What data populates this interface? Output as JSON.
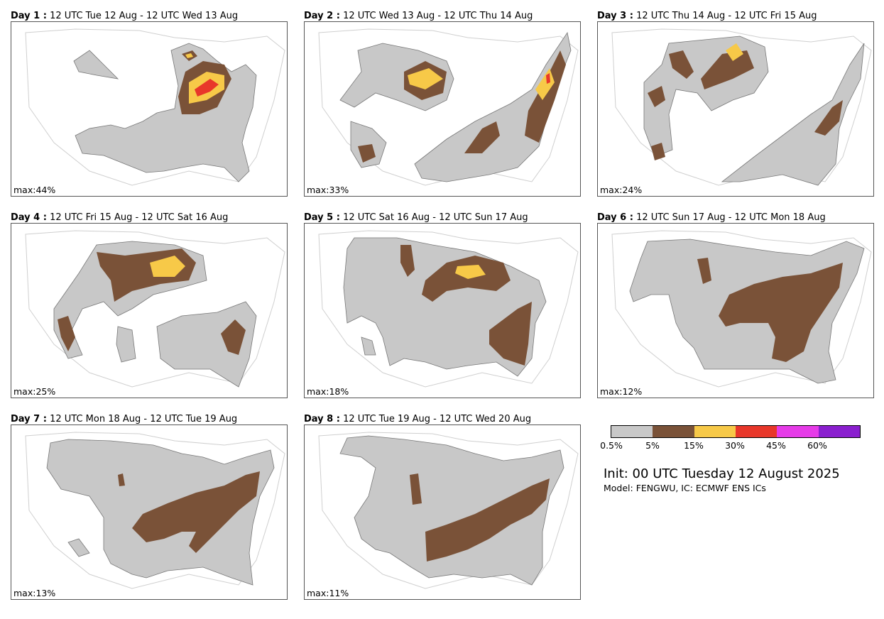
{
  "panels": [
    {
      "day": "Day 1 :",
      "period": "12 UTC Tue 12 Aug - 12 UTC Wed 13 Aug",
      "max": "max:44%"
    },
    {
      "day": "Day 2 :",
      "period": "12 UTC Wed 13 Aug - 12 UTC Thu 14 Aug",
      "max": "max:33%"
    },
    {
      "day": "Day 3 :",
      "period": "12 UTC Thu 14 Aug - 12 UTC Fri 15 Aug",
      "max": "max:24%"
    },
    {
      "day": "Day 4 :",
      "period": "12 UTC Fri 15 Aug - 12 UTC Sat 16 Aug",
      "max": "max:25%"
    },
    {
      "day": "Day 5 :",
      "period": "12 UTC Sat 16 Aug - 12 UTC Sun 17 Aug",
      "max": "max:18%"
    },
    {
      "day": "Day 6 :",
      "period": "12 UTC Sun 17 Aug - 12 UTC Mon 18 Aug",
      "max": "max:12%"
    },
    {
      "day": "Day 7 :",
      "period": "12 UTC Mon 18 Aug - 12 UTC Tue 19 Aug",
      "max": "max:13%"
    },
    {
      "day": "Day 8 :",
      "period": "12 UTC Tue 19 Aug - 12 UTC Wed 20 Aug",
      "max": "max:11%"
    }
  ],
  "legend": {
    "colors": [
      "#c8c8c8",
      "#7a5238",
      "#f7c948",
      "#e8372a",
      "#e63be8",
      "#8a1fcf"
    ],
    "ticks": [
      "0.5%",
      "5%",
      "15%",
      "30%",
      "45%",
      "60%"
    ]
  },
  "init_text": "Init: 00 UTC Tuesday 12 August 2025",
  "model_text": "Model: FENGWU, IC: ECMWF ENS ICs"
}
